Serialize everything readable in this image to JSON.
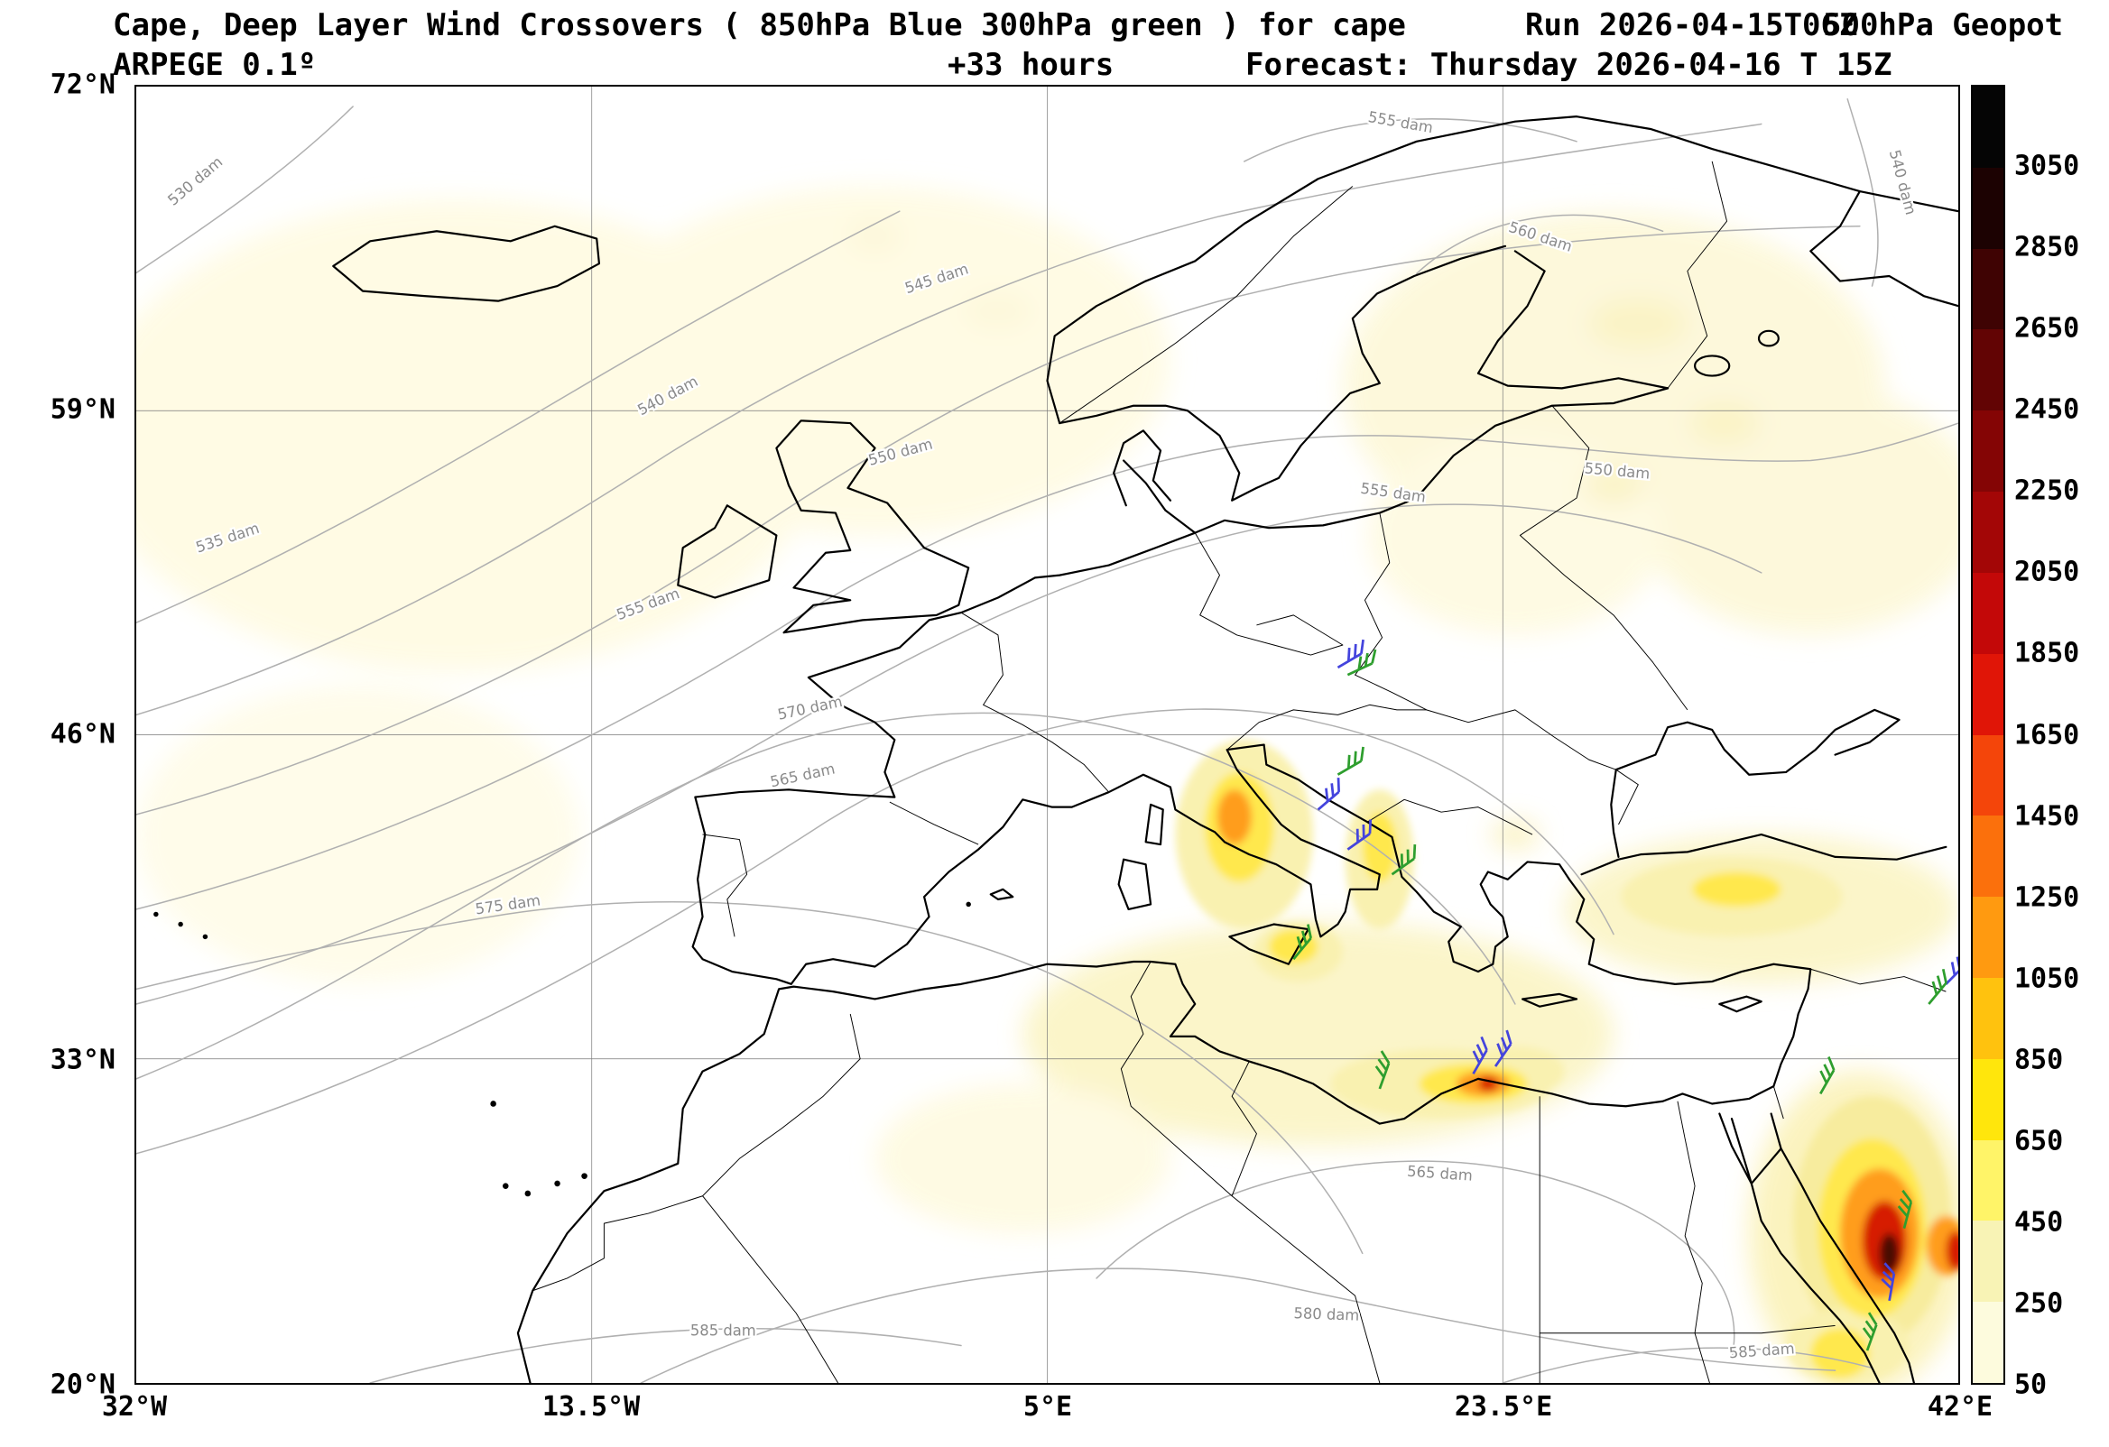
{
  "header": {
    "title_main": "Cape, Deep Layer Wind Crossovers ( 850hPa Blue 300hPa green ) for cape",
    "title_run": "Run 2026-04-15T06Z",
    "title_geopot": "500hPa Geopot",
    "model": "ARPEGE 0.1º",
    "lead_time": "+33 hours",
    "forecast": "Forecast: Thursday 2026-04-16 T 15Z"
  },
  "axes": {
    "lat_ticks": [
      "72°N",
      "59°N",
      "46°N",
      "33°N",
      "20°N"
    ],
    "lon_ticks": [
      "32°W",
      "13.5°W",
      "5°E",
      "23.5°E",
      "42°E"
    ]
  },
  "colorbar": {
    "ticks": [
      "3050",
      "2850",
      "2650",
      "2450",
      "2250",
      "2050",
      "1850",
      "1650",
      "1450",
      "1250",
      "1050",
      "850",
      "650",
      "450",
      "250",
      "50"
    ],
    "colors": [
      "#050505",
      "#1c0202",
      "#3f0303",
      "#620404",
      "#840505",
      "#a30606",
      "#c30808",
      "#e01507",
      "#f4450a",
      "#fb700c",
      "#ff9a10",
      "#ffc20e",
      "#ffe60c",
      "#fff468",
      "#f8f3b5",
      "#fdfbdd"
    ]
  },
  "colors": {
    "wind_850_blue": "#4444dd",
    "wind_300_green": "#2e9e2e",
    "contour_gray": "#b0b0b0"
  },
  "contours": {
    "unit": "dam",
    "labels": [
      "530 dam",
      "535 dam",
      "540 dam",
      "545 dam",
      "550 dam",
      "550 dam",
      "555 dam",
      "555 dam",
      "555 dam",
      "560 dam",
      "565 dam",
      "570 dam",
      "575 dam",
      "565 dam",
      "580 dam",
      "585 dam",
      "585 dam",
      "540 dam"
    ]
  },
  "chart_data": {
    "type": "heatmap",
    "title": "Cape, Deep Layer Wind Crossovers ( 850hPa Blue 300hPa green ) for cape",
    "subtitle_overlays": [
      "Run 2026-04-15T06Z",
      "500hPa Geopot"
    ],
    "model": "ARPEGE 0.1º",
    "run": "2026-04-15 06Z",
    "valid": "Thursday 2026-04-16 T 15Z",
    "lead_hours": 33,
    "x_axis": {
      "label": "longitude",
      "ticks": [
        "32°W",
        "13.5°W",
        "5°E",
        "23.5°E",
        "42°E"
      ],
      "range_deg": [
        -32,
        42
      ]
    },
    "y_axis": {
      "label": "latitude",
      "ticks": [
        "72°N",
        "59°N",
        "46°N",
        "33°N",
        "20°N"
      ],
      "range_deg": [
        20,
        72
      ]
    },
    "colorbar_variable": "CAPE (J/kg)",
    "colorbar_levels": [
      50,
      250,
      450,
      650,
      850,
      1050,
      1250,
      1450,
      1650,
      1850,
      2050,
      2250,
      2450,
      2650,
      2850,
      3050
    ],
    "geopotential_500hPa_contours_dam": [
      530,
      535,
      540,
      545,
      550,
      555,
      560,
      565,
      570,
      575,
      580,
      585
    ],
    "cape_regions": [
      {
        "region": "NE Atlantic / Iceland",
        "approx_cape_jkg": 100
      },
      {
        "region": "British Isles / North Sea",
        "approx_cape_jkg": 100
      },
      {
        "region": "Eastern Europe / western Russia",
        "approx_cape_jkg": 250
      },
      {
        "region": "Central Italy / Apennines",
        "approx_cape_jkg": 1250
      },
      {
        "region": "Adriatic / western Balkans",
        "approx_cape_jkg": 650
      },
      {
        "region": "Sicily / southern Italy",
        "approx_cape_jkg": 850
      },
      {
        "region": "Central Mediterranean south of Italy",
        "approx_cape_jkg": 450
      },
      {
        "region": "Gulf of Sirte / Libyan coast",
        "approx_cape_jkg": 1650
      },
      {
        "region": "Anatolia (Turkey)",
        "approx_cape_jkg": 650
      },
      {
        "region": "Nile Delta / Levant coast",
        "approx_cape_jkg": 850
      },
      {
        "region": "Red Sea / NE Africa",
        "approx_cape_jkg": 2850
      }
    ],
    "wind_barbs": {
      "850hPa_color": "blue",
      "300hPa_color": "green"
    }
  }
}
